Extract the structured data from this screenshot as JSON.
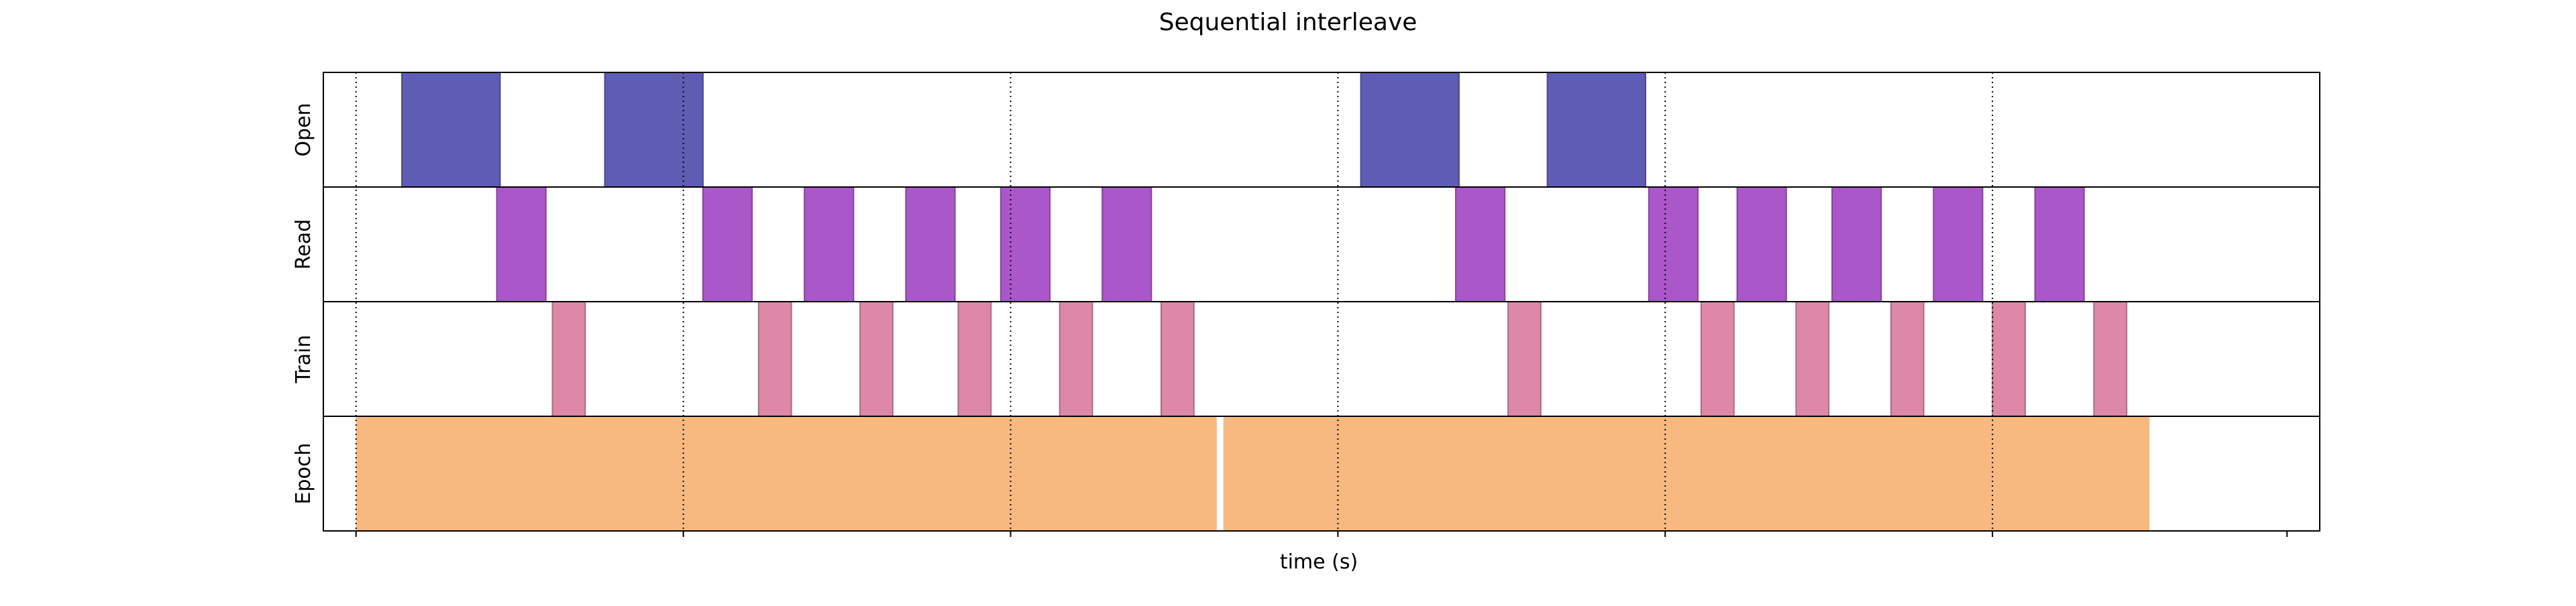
{
  "chart_data": {
    "type": "timeline",
    "title": "Sequential interleave",
    "xlabel": "time (s)",
    "rows": [
      "Open",
      "Read",
      "Train",
      "Epoch"
    ],
    "xlim": [
      -0.1,
      6.0
    ],
    "vertical_gridlines": [
      0,
      1,
      2,
      3,
      4,
      5
    ],
    "grid_style": "dotted",
    "colors": {
      "Open": "#5f5cb4",
      "Read": "#aa57c9",
      "Train": "#dd88a7",
      "Epoch": "#f8b981"
    },
    "series": [
      {
        "name": "Open",
        "intervals": [
          [
            0.14,
            0.44
          ],
          [
            0.76,
            1.06
          ],
          [
            3.07,
            3.37
          ],
          [
            3.64,
            3.94
          ]
        ]
      },
      {
        "name": "Read",
        "intervals": [
          [
            0.43,
            0.58
          ],
          [
            1.06,
            1.21
          ],
          [
            1.37,
            1.52
          ],
          [
            1.68,
            1.83
          ],
          [
            1.97,
            2.12
          ],
          [
            2.28,
            2.43
          ],
          [
            3.36,
            3.51
          ],
          [
            3.95,
            4.1
          ],
          [
            4.22,
            4.37
          ],
          [
            4.51,
            4.66
          ],
          [
            4.82,
            4.97
          ],
          [
            5.13,
            5.28
          ]
        ]
      },
      {
        "name": "Train",
        "intervals": [
          [
            0.6,
            0.7
          ],
          [
            1.23,
            1.33
          ],
          [
            1.54,
            1.64
          ],
          [
            1.84,
            1.94
          ],
          [
            2.15,
            2.25
          ],
          [
            2.46,
            2.56
          ],
          [
            3.52,
            3.62
          ],
          [
            4.11,
            4.21
          ],
          [
            4.4,
            4.5
          ],
          [
            4.69,
            4.79
          ],
          [
            5.0,
            5.1
          ],
          [
            5.31,
            5.41
          ]
        ]
      },
      {
        "name": "Epoch",
        "intervals": [
          [
            0.0,
            2.63
          ],
          [
            2.65,
            5.48
          ]
        ]
      }
    ]
  }
}
